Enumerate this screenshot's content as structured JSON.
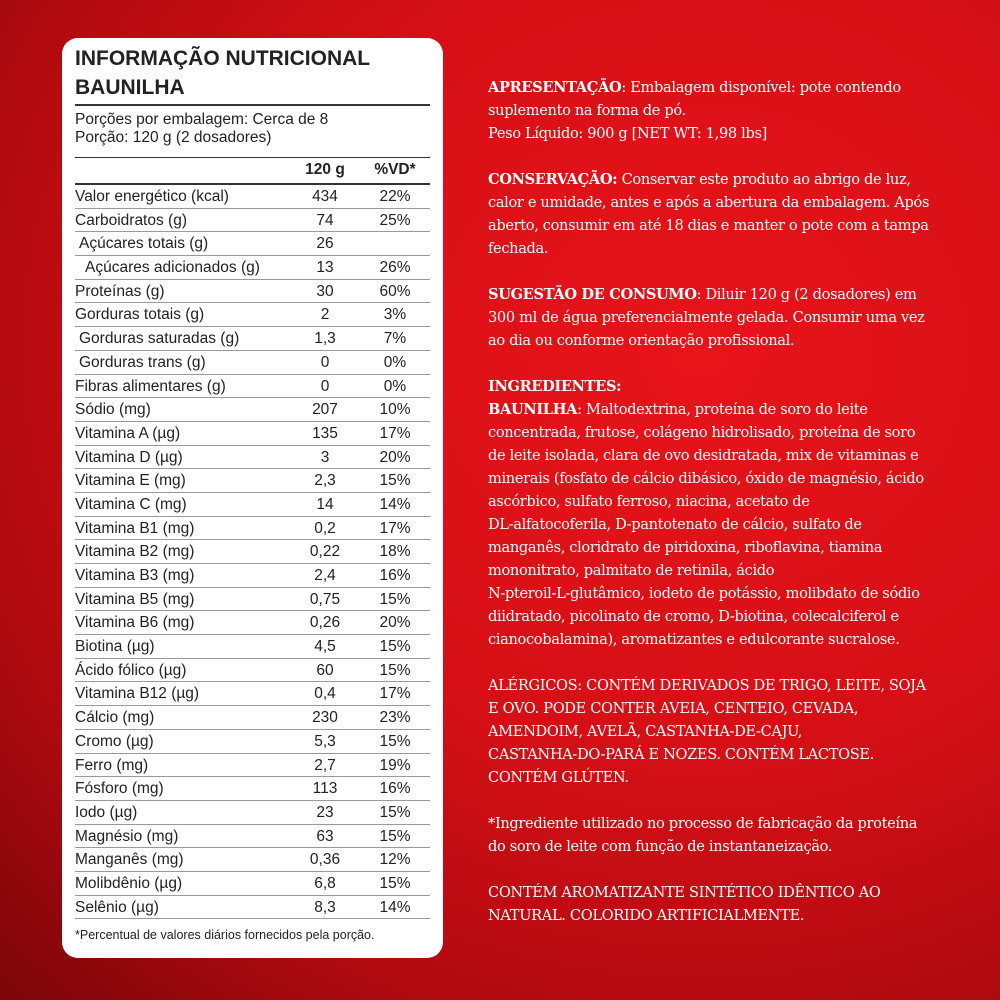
{
  "nutrition": {
    "title": "INFORMAÇÃO NUTRICIONAL",
    "flavor": "BAUNILHA",
    "servings_per_package": "Porções por embalagem: Cerca de 8",
    "serving_size": "Porção: 120 g (2 dosadores)",
    "col_amount": "120 g",
    "col_dv": "%VD*",
    "rows": [
      {
        "name": "Valor energético (kcal)",
        "amount": "434",
        "dv": "22%",
        "indent": 0
      },
      {
        "name": "Carboidratos (g)",
        "amount": "74",
        "dv": "25%",
        "indent": 0
      },
      {
        "name": "Açúcares totais (g)",
        "amount": "26",
        "dv": "",
        "indent": 1
      },
      {
        "name": "Açúcares adicionados (g)",
        "amount": "13",
        "dv": "26%",
        "indent": 2
      },
      {
        "name": "Proteínas (g)",
        "amount": "30",
        "dv": "60%",
        "indent": 0
      },
      {
        "name": "Gorduras totais (g)",
        "amount": "2",
        "dv": "3%",
        "indent": 0
      },
      {
        "name": "Gorduras saturadas (g)",
        "amount": "1,3",
        "dv": "7%",
        "indent": 1
      },
      {
        "name": "Gorduras trans (g)",
        "amount": "0",
        "dv": "0%",
        "indent": 1
      },
      {
        "name": "Fibras alimentares (g)",
        "amount": "0",
        "dv": "0%",
        "indent": 0
      },
      {
        "name": "Sódio (mg)",
        "amount": "207",
        "dv": "10%",
        "indent": 0
      },
      {
        "name": "Vitamina A (µg)",
        "amount": "135",
        "dv": "17%",
        "indent": 0
      },
      {
        "name": "Vitamina D (µg)",
        "amount": "3",
        "dv": "20%",
        "indent": 0
      },
      {
        "name": "Vitamina E (mg)",
        "amount": "2,3",
        "dv": "15%",
        "indent": 0
      },
      {
        "name": "Vitamina C (mg)",
        "amount": "14",
        "dv": "14%",
        "indent": 0
      },
      {
        "name": "Vitamina B1 (mg)",
        "amount": "0,2",
        "dv": "17%",
        "indent": 0
      },
      {
        "name": "Vitamina B2 (mg)",
        "amount": "0,22",
        "dv": "18%",
        "indent": 0
      },
      {
        "name": "Vitamina B3 (mg)",
        "amount": "2,4",
        "dv": "16%",
        "indent": 0
      },
      {
        "name": "Vitamina B5 (mg)",
        "amount": "0,75",
        "dv": "15%",
        "indent": 0
      },
      {
        "name": "Vitamina B6 (mg)",
        "amount": "0,26",
        "dv": "20%",
        "indent": 0
      },
      {
        "name": "Biotina (µg)",
        "amount": "4,5",
        "dv": "15%",
        "indent": 0
      },
      {
        "name": "Ácido fólico (µg)",
        "amount": "60",
        "dv": "15%",
        "indent": 0
      },
      {
        "name": "Vitamina B12 (µg)",
        "amount": "0,4",
        "dv": "17%",
        "indent": 0
      },
      {
        "name": "Cálcio (mg)",
        "amount": "230",
        "dv": "23%",
        "indent": 0
      },
      {
        "name": "Cromo (µg)",
        "amount": "5,3",
        "dv": "15%",
        "indent": 0
      },
      {
        "name": "Ferro (mg)",
        "amount": "2,7",
        "dv": "19%",
        "indent": 0
      },
      {
        "name": "Fósforo (mg)",
        "amount": "113",
        "dv": "16%",
        "indent": 0
      },
      {
        "name": "Iodo (µg)",
        "amount": "23",
        "dv": "15%",
        "indent": 0
      },
      {
        "name": "Magnésio (mg)",
        "amount": "63",
        "dv": "15%",
        "indent": 0
      },
      {
        "name": "Manganês (mg)",
        "amount": "0,36",
        "dv": "12%",
        "indent": 0
      },
      {
        "name": "Molibdênio (µg)",
        "amount": "6,8",
        "dv": "15%",
        "indent": 0
      },
      {
        "name": "Selênio (µg)",
        "amount": "8,3",
        "dv": "14%",
        "indent": 0
      }
    ],
    "footnote": "*Percentual de valores diários fornecidos pela porção."
  },
  "info": {
    "paragraphs": [
      {
        "label": "APRESENTAÇÃO",
        "lines": [
          ": Embalagem disponível: pote contendo",
          "suplemento na forma de pó.",
          "Peso Líquido: 900 g [NET WT: 1,98 lbs]"
        ]
      },
      {
        "label": "CONSERVAÇÃO:",
        "lines": [
          " Conservar este produto ao abrigo de luz,",
          "calor e umidade, antes e após a abertura da embalagem. Após",
          "aberto, consumir em até 18 dias e manter o pote com a tampa",
          "fechada."
        ]
      },
      {
        "label": "SUGESTÃO DE CONSUMO",
        "lines": [
          ": Diluir 120 g (2 dosadores) em",
          "300 ml de água preferencialmente gelada. Consumir uma vez",
          "ao dia ou conforme orientação profissional."
        ]
      },
      {
        "label": "INGREDIENTES:",
        "lines": [
          "",
          "BAUNILHA: Maltodextrina, proteína de soro do leite",
          "concentrada, frutose, colágeno hidrolisado, proteína de soro",
          "de leite isolada, clara de ovo desidratada, mix de vitaminas e",
          "minerais (fosfato de cálcio dibásico, óxido de magnésio, ácido",
          "ascórbico, sulfato ferroso, niacina, acetato de",
          "DL-alfatocoferila, D-pantotenato de cálcio, sulfato de",
          "manganês, cloridrato de piridoxina, riboflavina, tiamina",
          "mononitrato,  palmitato de retinila, ácido",
          "N-pteroil-L-glutâmico, iodeto de potássio, molibdato de sódio",
          "diidratado, picolinato de cromo, D-biotina, colecalciferol e",
          "cianocobalamina), aromatizantes e edulcorante sucralose."
        ]
      },
      {
        "label": "",
        "lines": [
          "ALÉRGICOS: CONTÉM DERIVADOS DE TRIGO, LEITE, SOJA",
          "E OVO. PODE CONTER AVEIA, CENTEIO, CEVADA,",
          "AMENDOIM, AVELÃ, CASTANHA-DE-CAJU,",
          "CASTANHA-DO-PARÁ E NOZES. CONTÉM LACTOSE.",
          "CONTÉM GLÚTEN."
        ]
      },
      {
        "label": "",
        "lines": [
          "*Ingrediente utilizado no processo de fabricação da proteína",
          "do soro de leite com função de instantaneização."
        ]
      },
      {
        "label": "",
        "lines": [
          "CONTÉM AROMATIZANTE SINTÉTICO IDÊNTICO AO",
          "NATURAL. COLORIDO ARTIFICIALMENTE."
        ]
      }
    ]
  }
}
